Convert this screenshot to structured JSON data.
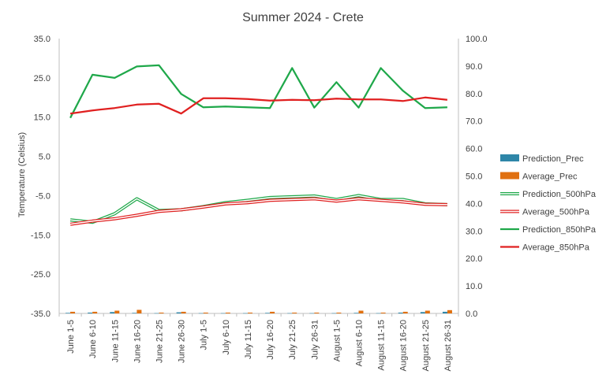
{
  "chart_data": {
    "type": "line",
    "title": "Summer 2024 - Crete",
    "ylabel": "Temperature  (Celsius)",
    "y2label": "",
    "ylim": [
      -35,
      35
    ],
    "y2lim": [
      0,
      100
    ],
    "yticks": [
      "35.0",
      "25.0",
      "15.0",
      "5.0",
      "-5.0",
      "-15.0",
      "-25.0",
      "-35.0"
    ],
    "y2ticks": [
      "100.0",
      "90.0",
      "80.0",
      "70.0",
      "60.0",
      "50.0",
      "40.0",
      "30.0",
      "20.0",
      "10.0",
      "0.0"
    ],
    "grid": false,
    "legend_position": "right",
    "categories": [
      "June 1-5",
      "June 6-10",
      "June 11-15",
      "June 16-20",
      "June 21-25",
      "June 26-30",
      "July 1-5",
      "July 6-10",
      "July 11-15",
      "July 16-20",
      "July 21-25",
      "July 26-31",
      "August 1-5",
      "August 6-10",
      "August 11-15",
      "August 16-20",
      "August 21-25",
      "August 26-31"
    ],
    "series": [
      {
        "name": "Prediction_Prec",
        "kind": "bar",
        "axis": "secondary",
        "color": "#2e86a8",
        "values": [
          0.2,
          0.3,
          0.5,
          0.2,
          0.1,
          0.4,
          0.1,
          0.1,
          0.1,
          0.2,
          0.1,
          0.1,
          0.1,
          0.2,
          0.1,
          0.3,
          0.5,
          0.6
        ]
      },
      {
        "name": "Average_Prec",
        "kind": "bar",
        "axis": "secondary",
        "color": "#e07010",
        "values": [
          0.6,
          0.6,
          1.0,
          1.3,
          0.3,
          0.6,
          0.3,
          0.3,
          0.3,
          0.6,
          0.3,
          0.3,
          0.3,
          1.0,
          0.3,
          0.6,
          1.0,
          1.2
        ]
      },
      {
        "name": "Prediction_500hPa",
        "kind": "line",
        "style": "double",
        "axis": "primary",
        "color": "#1fa84a",
        "values": [
          -11.2,
          -11.8,
          -9.6,
          -5.8,
          -8.8,
          -8.6,
          -7.8,
          -6.8,
          -6.2,
          -5.5,
          -5.3,
          -5.1,
          -6.0,
          -5.0,
          -6.0,
          -6.0,
          -7.1,
          -7.3
        ]
      },
      {
        "name": "Average_500hPa",
        "kind": "line",
        "style": "double",
        "axis": "primary",
        "color": "#e02020",
        "values": [
          -12.3,
          -11.5,
          -10.9,
          -10.0,
          -9.0,
          -8.6,
          -7.9,
          -7.1,
          -6.8,
          -6.2,
          -6.0,
          -5.8,
          -6.4,
          -5.8,
          -6.2,
          -6.6,
          -7.2,
          -7.3
        ]
      },
      {
        "name": "Prediction_850hPa",
        "kind": "line",
        "style": "solid",
        "axis": "primary",
        "color": "#1fa84a",
        "values": [
          14.8,
          25.8,
          25.0,
          27.9,
          28.2,
          20.9,
          17.5,
          17.7,
          17.5,
          17.3,
          27.5,
          17.4,
          23.9,
          17.4,
          27.5,
          21.7,
          17.3,
          17.5
        ]
      },
      {
        "name": "Average_850hPa",
        "kind": "line",
        "style": "solid",
        "axis": "primary",
        "color": "#e02020",
        "values": [
          15.9,
          16.7,
          17.3,
          18.2,
          18.4,
          15.9,
          19.8,
          19.8,
          19.6,
          19.2,
          19.4,
          19.3,
          19.7,
          19.5,
          19.5,
          19.1,
          20.0,
          19.4
        ]
      }
    ]
  }
}
